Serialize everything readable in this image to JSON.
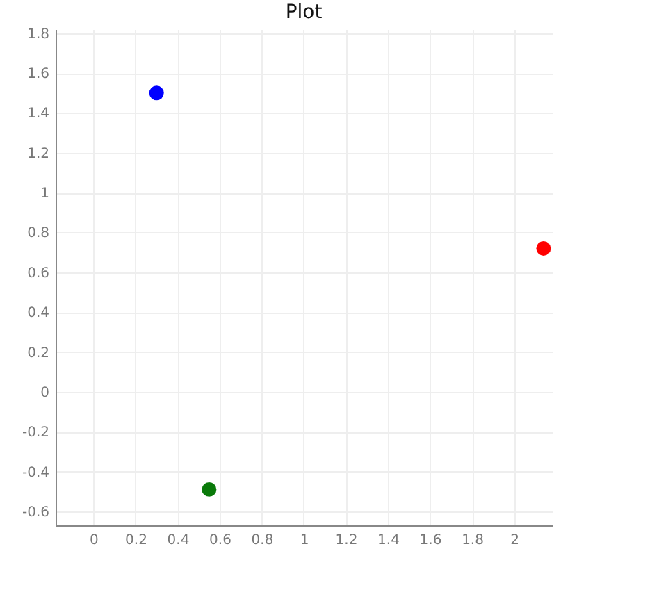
{
  "chart_data": {
    "type": "scatter",
    "title": "Plot",
    "xlim": [
      -0.18,
      2.18
    ],
    "xticks": [
      0,
      0.2,
      0.4,
      0.6,
      0.8,
      1,
      1.2,
      1.4,
      1.6,
      1.8,
      2
    ],
    "ylim": [
      -0.67,
      1.82
    ],
    "yticks": [
      -0.6,
      -0.4,
      -0.2,
      0,
      0.2,
      0.4,
      0.6,
      0.8,
      1,
      1.2,
      1.4,
      1.6,
      1.8
    ],
    "grid": true,
    "marker": "circle",
    "series": [
      {
        "color": "#0000ff",
        "x": [
          0.3
        ],
        "values": [
          1.5
        ]
      },
      {
        "color": "#ff0000",
        "x": [
          2.14
        ],
        "values": [
          0.72
        ]
      },
      {
        "color": "#0a7a0a",
        "x": [
          0.55
        ],
        "values": [
          -0.49
        ]
      }
    ]
  }
}
